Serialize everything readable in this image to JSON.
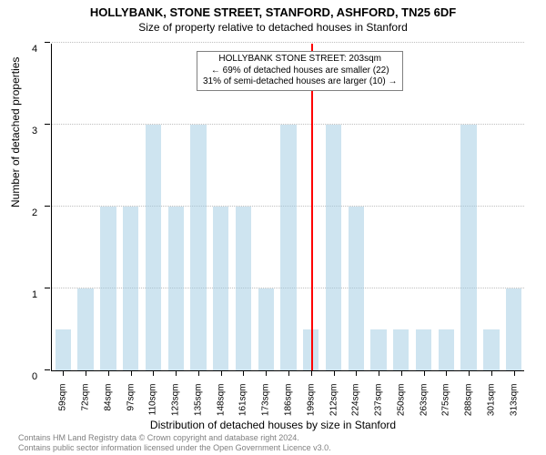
{
  "title": "HOLLYBANK, STONE STREET, STANFORD, ASHFORD, TN25 6DF",
  "subtitle": "Size of property relative to detached houses in Stanford",
  "y_axis_title": "Number of detached properties",
  "x_axis_title": "Distribution of detached houses by size in Stanford",
  "chart": {
    "type": "bar",
    "ylim": [
      0,
      4
    ],
    "ytick_step": 1,
    "bar_color": "#9ecae1",
    "bar_opacity": 0.5,
    "grid_color": "#bfbfbf",
    "background_color": "#ffffff",
    "categories": [
      "59sqm",
      "72sqm",
      "84sqm",
      "97sqm",
      "110sqm",
      "123sqm",
      "135sqm",
      "148sqm",
      "161sqm",
      "173sqm",
      "186sqm",
      "199sqm",
      "212sqm",
      "224sqm",
      "237sqm",
      "250sqm",
      "263sqm",
      "275sqm",
      "288sqm",
      "301sqm",
      "313sqm"
    ],
    "values": [
      0.5,
      1,
      2,
      2,
      3,
      2,
      3,
      2,
      2,
      1,
      3,
      0.5,
      3,
      2,
      0.5,
      0.5,
      0.5,
      0.5,
      3,
      0.5,
      1
    ],
    "reference_line": {
      "position_index": 11.5,
      "color": "#ff0000",
      "width": 2
    },
    "bar_width_ratio": 0.7
  },
  "annotation": {
    "line1": "HOLLYBANK STONE STREET: 203sqm",
    "line2": "← 69% of detached houses are smaller (22)",
    "line3": "31% of semi-detached houses are larger (10) →",
    "border_color": "#808080",
    "fontsize": 10
  },
  "footer": {
    "line1": "Contains HM Land Registry data © Crown copyright and database right 2024.",
    "line2": "Contains public sector information licensed under the Open Government Licence v3.0.",
    "color": "#808080"
  }
}
